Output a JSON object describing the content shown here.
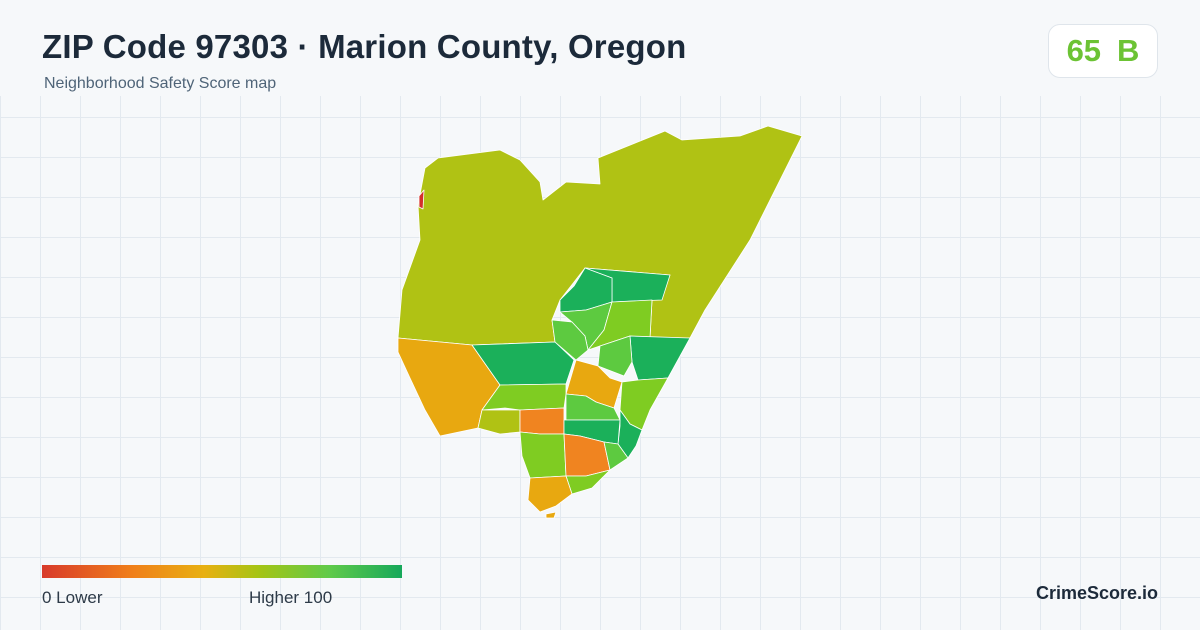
{
  "header": {
    "title": "ZIP Code 97303 · Marion County, Oregon",
    "subtitle": "Neighborhood Safety Score map"
  },
  "score": {
    "value": "65",
    "grade": "B",
    "color": "#6cc334"
  },
  "legend": {
    "min_label": "0  Lower",
    "max_label": "Higher  100",
    "scale": [
      0,
      100
    ],
    "colors": [
      "#d83a2b",
      "#f07f1a",
      "#e8b012",
      "#a6c414",
      "#5fca4a",
      "#16a85a"
    ]
  },
  "brand": "CrimeScore.io",
  "map": {
    "region_colors": {
      "high": "#1bb05a",
      "upper": "#5dca40",
      "mid": "#7fcc22",
      "yellowgreen": "#b0c214",
      "yellow": "#e8a810",
      "orange": "#f08420",
      "red": "#d4302a"
    }
  }
}
